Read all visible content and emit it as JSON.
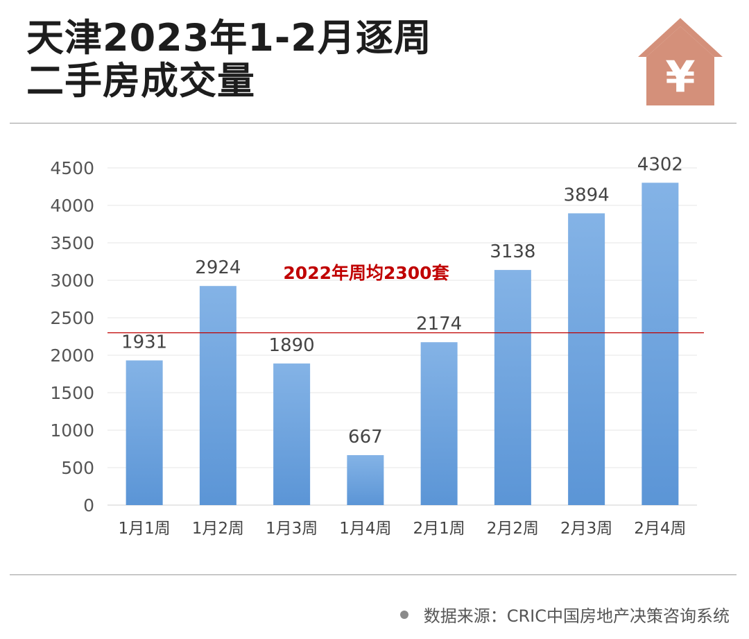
{
  "title_lines": [
    "天津2023年1-2月逐周",
    "二手房成交量"
  ],
  "icon": {
    "name": "house-yuan-icon",
    "glyph": "¥",
    "color": "#d4907a"
  },
  "source": "数据来源：CRIC中国房地产决策咨询系统",
  "chart_data": {
    "type": "bar",
    "categories": [
      "1月1周",
      "1月2周",
      "1月3周",
      "1月4周",
      "2月1周",
      "2月2周",
      "2月3周",
      "2月4周"
    ],
    "values": [
      1931,
      2924,
      1890,
      667,
      2174,
      3138,
      3894,
      4302
    ],
    "ylim": [
      0,
      4500
    ],
    "yticks": [
      0,
      500,
      1000,
      1500,
      2000,
      2500,
      3000,
      3500,
      4000,
      4500
    ],
    "grid": true,
    "bar_color": "#6a9fd9",
    "reference_line": {
      "value": 2300,
      "label": "2022年周均2300套",
      "color": "#c00000"
    }
  }
}
